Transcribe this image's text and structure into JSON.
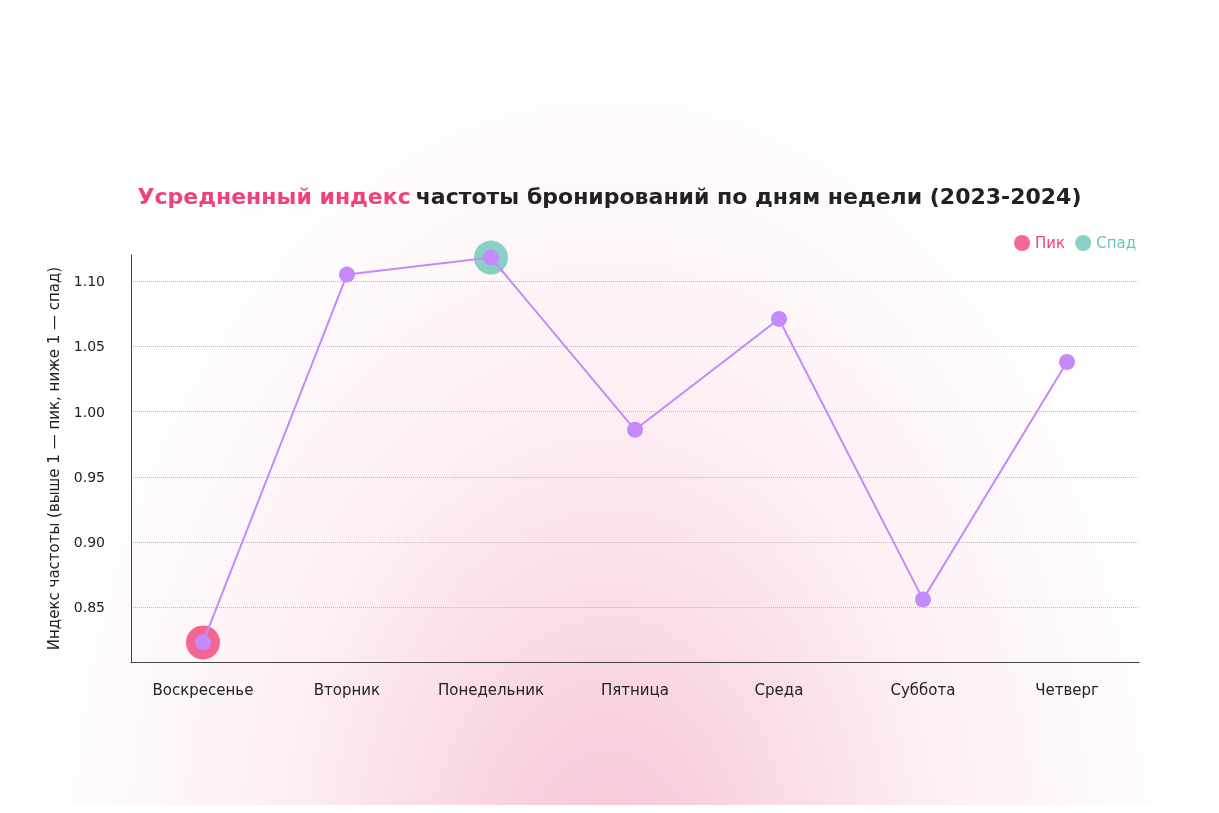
{
  "chart_data": {
    "type": "line",
    "title": "Усредненный индекс частоты бронирований по дням недели (2023-2024)",
    "ylabel": "Индекс частоты (выше 1 — пик, ниже 1 — спад)",
    "categories": [
      "Воскресенье",
      "Вторник",
      "Понедельник",
      "Пятница",
      "Среда",
      "Суббота",
      "Четверг"
    ],
    "series": [
      {
        "color": "#c58af9",
        "values": [
          0.823,
          1.105,
          1.118,
          0.986,
          1.071,
          0.856,
          1.038
        ]
      },
      {
        "name": "Пик",
        "type": "scatter",
        "color": "#f0427a",
        "values": [
          0.823,
          null,
          null,
          null,
          null,
          null,
          null
        ]
      },
      {
        "name": "Спад",
        "type": "scatter",
        "color": "#6cc5b8",
        "values": [
          null,
          null,
          1.118,
          null,
          null,
          null,
          null
        ]
      }
    ],
    "ylim": [
      0.808,
      1.12
    ],
    "yticks": [
      {
        "value": 0.85,
        "label": "0.85"
      },
      {
        "value": 0.9,
        "label": "0.90"
      },
      {
        "value": 0.95,
        "label": "0.95"
      },
      {
        "value": 1.0,
        "label": "1.00"
      },
      {
        "value": 1.05,
        "label": "1.05"
      },
      {
        "value": 1.1,
        "label": "1.10"
      }
    ],
    "grid": "y",
    "legend": "top right",
    "marker": "circle",
    "line_style": "solid"
  }
}
